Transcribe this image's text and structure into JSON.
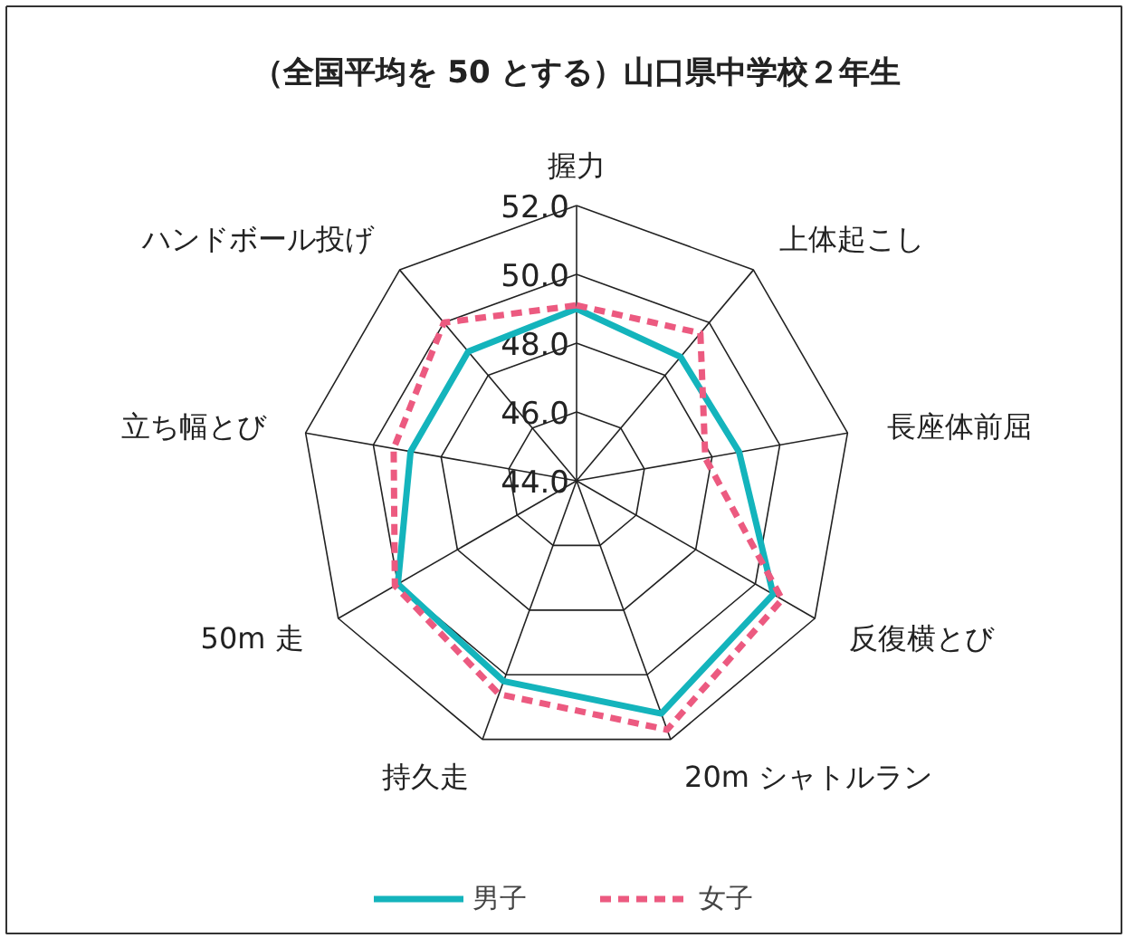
{
  "chart_data": {
    "type": "radar",
    "title": "（全国平均を 50 とする）山口県中学校２年生",
    "categories": [
      "握力",
      "上体起こし",
      "長座体前屈",
      "反復横とび",
      "20m シャトルラン",
      "持久走",
      "50m 走",
      "立ち幅とび",
      "ハンドボール投げ"
    ],
    "series": [
      {
        "name": "男子",
        "color": "#14b4bc",
        "line_style": "solid",
        "values": [
          49.0,
          48.7,
          48.8,
          50.6,
          51.2,
          50.2,
          50.0,
          48.9,
          48.9
        ]
      },
      {
        "name": "女子",
        "color": "#ec5a80",
        "line_style": "dashed",
        "values": [
          49.1,
          49.6,
          47.8,
          50.9,
          51.7,
          50.6,
          50.1,
          49.4,
          50.0
        ]
      }
    ],
    "ylim": [
      44,
      52
    ],
    "yticks": [
      {
        "value": 44,
        "label": "44.0"
      },
      {
        "value": 46,
        "label": "46.0"
      },
      {
        "value": 48,
        "label": "48.0"
      },
      {
        "value": 50,
        "label": "50.0"
      },
      {
        "value": 52,
        "label": "52.0"
      }
    ],
    "grid": true,
    "legend": "bottom",
    "marker": "none"
  }
}
